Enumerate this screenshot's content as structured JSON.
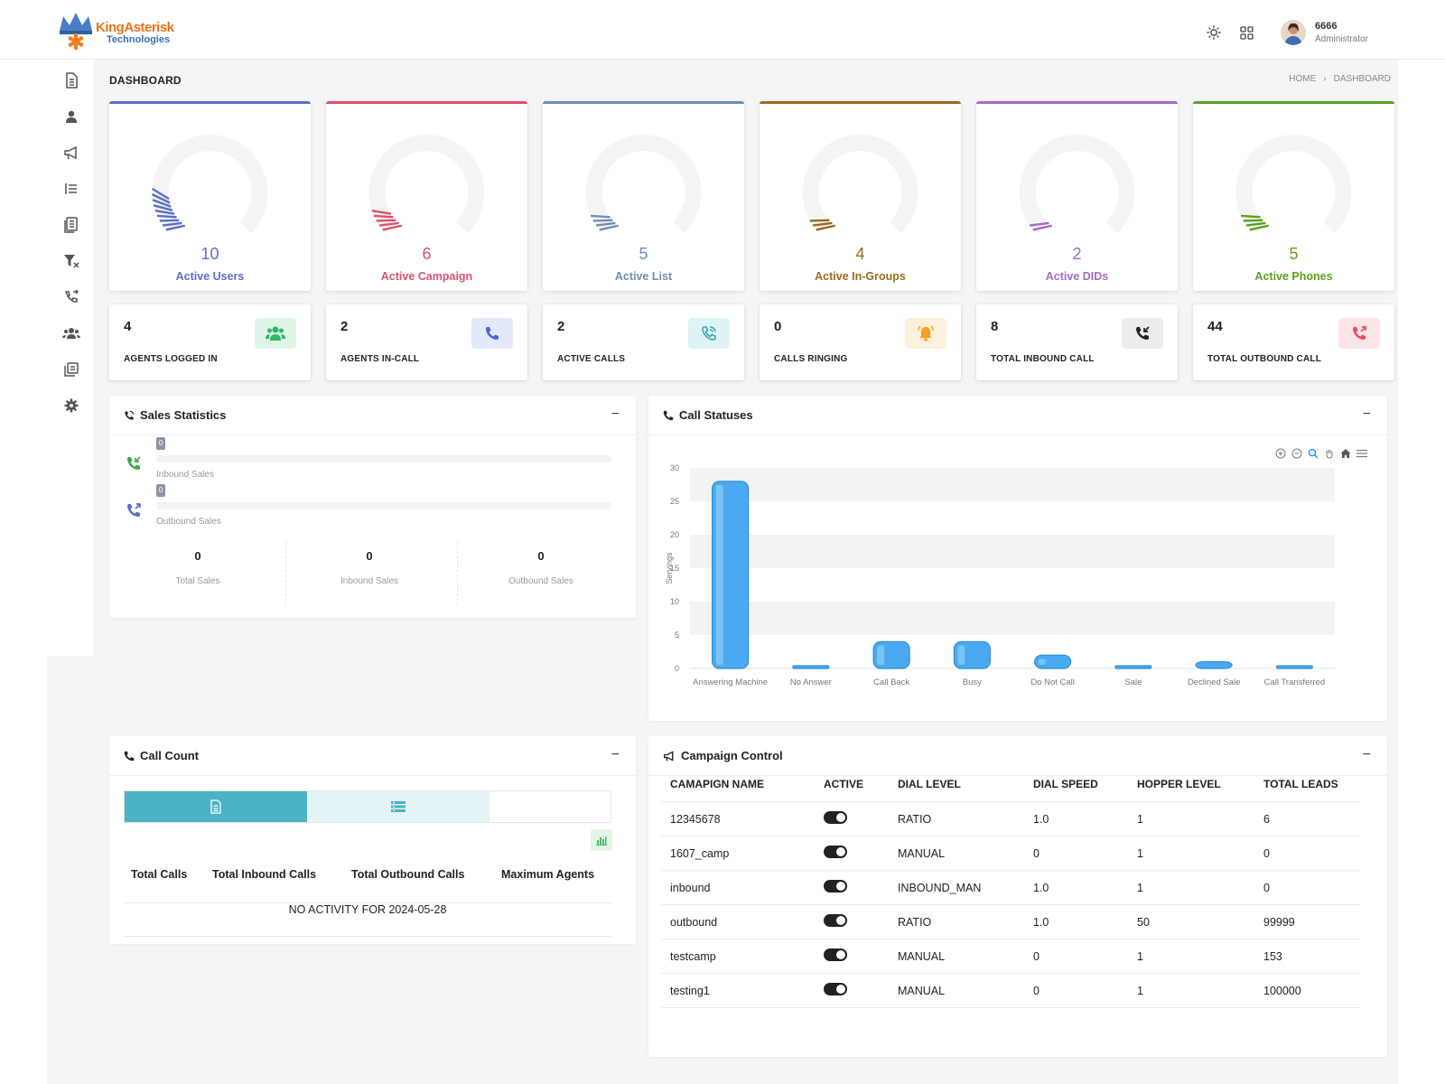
{
  "logo": {
    "line1": "KingAsterisk",
    "line2": "Technologies"
  },
  "header": {
    "user_name": "6666",
    "user_role": "Administrator",
    "theme_icon": "sun-icon",
    "apps_icon": "grid-icon"
  },
  "sidebar": {
    "items": [
      {
        "icon": "document-icon"
      },
      {
        "icon": "user-icon"
      },
      {
        "icon": "megaphone-icon"
      },
      {
        "icon": "list-icon"
      },
      {
        "icon": "report-icon"
      },
      {
        "icon": "filter-icon"
      },
      {
        "icon": "phone-call-icon"
      },
      {
        "icon": "users-group-icon"
      },
      {
        "icon": "gallery-icon"
      },
      {
        "icon": "gear-icon"
      }
    ]
  },
  "page": {
    "title": "DASHBOARD",
    "breadcrumb": {
      "home": "HOME",
      "sep": "›",
      "current": "DASHBOARD"
    }
  },
  "gauges": [
    {
      "value": "10",
      "label": "Active Users",
      "color": "#5b6fc7",
      "fraction": 0.1
    },
    {
      "value": "6",
      "label": "Active Campaign",
      "color": "#d9536f",
      "fraction": 0.06
    },
    {
      "value": "5",
      "label": "Active List",
      "color": "#6f8fb2",
      "fraction": 0.05
    },
    {
      "value": "4",
      "label": "Active In-Groups",
      "color": "#9a6a1e",
      "fraction": 0.04
    },
    {
      "value": "2",
      "label": "Active DIDs",
      "color": "#a36ac7",
      "fraction": 0.02
    },
    {
      "value": "5",
      "label": "Active Phones",
      "color": "#5aa21a",
      "fraction": 0.05
    }
  ],
  "stats": [
    {
      "value": "4",
      "label": "AGENTS LOGGED IN",
      "icon": "users-icon",
      "bg": "#dff5e8",
      "fg": "#2fb866"
    },
    {
      "value": "2",
      "label": "AGENTS IN-CALL",
      "icon": "phone-icon",
      "bg": "#e3e8fb",
      "fg": "#4a62d8"
    },
    {
      "value": "2",
      "label": "ACTIVE CALLS",
      "icon": "phone-ring-icon",
      "bg": "#def3f4",
      "fg": "#3aa7b4"
    },
    {
      "value": "0",
      "label": "CALLS RINGING",
      "icon": "bell-icon",
      "bg": "#fdf0dc",
      "fg": "#f4a01e"
    },
    {
      "value": "8",
      "label": "TOTAL INBOUND CALL",
      "icon": "incoming-call-icon",
      "bg": "#ececec",
      "fg": "#222222"
    },
    {
      "value": "44",
      "label": "TOTAL OUTBOUND CALL",
      "icon": "outgoing-call-icon",
      "bg": "#fde4e6",
      "fg": "#e94b5b"
    }
  ],
  "sales": {
    "title": "Sales Statistics",
    "minimize": "−",
    "inbound": {
      "badge": "0",
      "label": "Inbound Sales"
    },
    "outbound": {
      "badge": "0",
      "label": "Outbound Sales"
    },
    "totals": [
      {
        "value": "0",
        "label": "Total Sales"
      },
      {
        "value": "0",
        "label": "Inbound Sales"
      },
      {
        "value": "0",
        "label": "Outbound Sales"
      }
    ]
  },
  "call_statuses": {
    "title": "Call Statuses",
    "minimize": "−"
  },
  "chart_data": {
    "type": "bar",
    "categories": [
      "Answering Machine",
      "No Answer",
      "Call Back",
      "Busy",
      "Do Not Call",
      "Sale",
      "Declined Sale",
      "Call Transferred"
    ],
    "values": [
      28,
      0,
      4,
      4,
      2,
      0,
      1,
      0
    ],
    "ylabel": "Servings",
    "ylim": [
      0,
      30
    ],
    "yticks": [
      "0",
      "5",
      "10",
      "15",
      "20",
      "25",
      "30"
    ],
    "bar_color": "#4aa9f0",
    "grid": true
  },
  "call_count": {
    "title": "Call Count",
    "minimize": "−",
    "headers": [
      "Total Calls",
      "Total Inbound Calls",
      "Total Outbound Calls",
      "Maximum Agents"
    ],
    "empty_message": "NO ACTIVITY FOR 2024-05-28"
  },
  "campaign": {
    "title": "Campaign Control",
    "minimize": "−",
    "headers": [
      "CAMAPIGN NAME",
      "ACTIVE",
      "DIAL LEVEL",
      "DIAL SPEED",
      "HOPPER LEVEL",
      "TOTAL LEADS"
    ],
    "rows": [
      {
        "name": "12345678",
        "dial_level": "RATIO",
        "dial_speed": "1.0",
        "hopper": "1",
        "leads": "6"
      },
      {
        "name": "1607_camp",
        "dial_level": "MANUAL",
        "dial_speed": "0",
        "hopper": "1",
        "leads": "0"
      },
      {
        "name": "inbound",
        "dial_level": "INBOUND_MAN",
        "dial_speed": "1.0",
        "hopper": "1",
        "leads": "0"
      },
      {
        "name": "outbound",
        "dial_level": "RATIO",
        "dial_speed": "1.0",
        "hopper": "50",
        "leads": "99999"
      },
      {
        "name": "testcamp",
        "dial_level": "MANUAL",
        "dial_speed": "0",
        "hopper": "1",
        "leads": "153"
      },
      {
        "name": "testing1",
        "dial_level": "MANUAL",
        "dial_speed": "0",
        "hopper": "1",
        "leads": "100000"
      }
    ]
  }
}
